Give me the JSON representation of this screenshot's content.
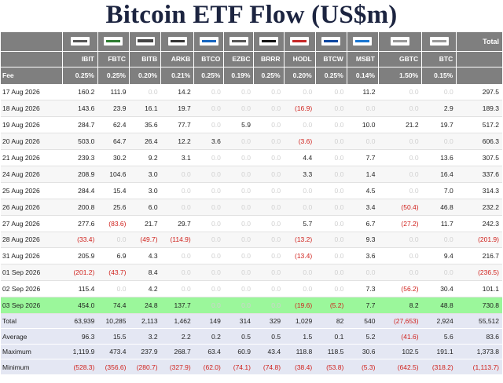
{
  "title": "Bitcoin ETF Flow (US$m)",
  "header": {
    "total_label": "Total",
    "fee_label": "Fee",
    "columns": [
      {
        "ticker": "IBIT",
        "fee": "0.25%",
        "logo": "blackrock-logo-icon"
      },
      {
        "ticker": "FBTC",
        "fee": "0.25%",
        "logo": "fidelity-logo-icon"
      },
      {
        "ticker": "BITB",
        "fee": "0.20%",
        "logo": "bitwise-logo-icon"
      },
      {
        "ticker": "ARKB",
        "fee": "0.21%",
        "logo": "ark-logo-icon"
      },
      {
        "ticker": "BTCO",
        "fee": "0.25%",
        "logo": "invesco-logo-icon"
      },
      {
        "ticker": "EZBC",
        "fee": "0.19%",
        "logo": "franklin-logo-icon"
      },
      {
        "ticker": "BRRR",
        "fee": "0.25%",
        "logo": "valkyrie-logo-icon"
      },
      {
        "ticker": "HODL",
        "fee": "0.20%",
        "logo": "vaneck-logo-icon"
      },
      {
        "ticker": "BTCW",
        "fee": "0.25%",
        "logo": "wisdomtree-logo-icon"
      },
      {
        "ticker": "MSBT",
        "fee": "0.14%",
        "logo": "morgan-stanley-logo-icon"
      },
      {
        "ticker": "GBTC",
        "fee": "1.50%",
        "logo": "grayscale-logo-icon"
      },
      {
        "ticker": "BTC",
        "fee": "0.15%",
        "logo": "grayscale-mini-logo-icon"
      }
    ]
  },
  "rows": [
    {
      "date": "17 Aug 2026",
      "values": [
        "160.2",
        "111.9",
        "0.0",
        "14.2",
        "0.0",
        "0.0",
        "0.0",
        "0.0",
        "0.0",
        "11.2",
        "0.0",
        "0.0"
      ],
      "total": "297.5"
    },
    {
      "date": "18 Aug 2026",
      "values": [
        "143.6",
        "23.9",
        "16.1",
        "19.7",
        "0.0",
        "0.0",
        "0.0",
        "(16.9)",
        "0.0",
        "0.0",
        "0.0",
        "2.9"
      ],
      "total": "189.3"
    },
    {
      "date": "19 Aug 2026",
      "values": [
        "284.7",
        "62.4",
        "35.6",
        "77.7",
        "0.0",
        "5.9",
        "0.0",
        "0.0",
        "0.0",
        "10.0",
        "21.2",
        "19.7"
      ],
      "total": "517.2"
    },
    {
      "date": "20 Aug 2026",
      "values": [
        "503.0",
        "64.7",
        "26.4",
        "12.2",
        "3.6",
        "0.0",
        "0.0",
        "(3.6)",
        "0.0",
        "0.0",
        "0.0",
        "0.0"
      ],
      "total": "606.3"
    },
    {
      "date": "21 Aug 2026",
      "values": [
        "239.3",
        "30.2",
        "9.2",
        "3.1",
        "0.0",
        "0.0",
        "0.0",
        "4.4",
        "0.0",
        "7.7",
        "0.0",
        "13.6"
      ],
      "total": "307.5"
    },
    {
      "date": "24 Aug 2026",
      "values": [
        "208.9",
        "104.6",
        "3.0",
        "0.0",
        "0.0",
        "0.0",
        "0.0",
        "3.3",
        "0.0",
        "1.4",
        "0.0",
        "16.4"
      ],
      "total": "337.6"
    },
    {
      "date": "25 Aug 2026",
      "values": [
        "284.4",
        "15.4",
        "3.0",
        "0.0",
        "0.0",
        "0.0",
        "0.0",
        "0.0",
        "0.0",
        "4.5",
        "0.0",
        "7.0"
      ],
      "total": "314.3"
    },
    {
      "date": "26 Aug 2026",
      "values": [
        "200.8",
        "25.6",
        "6.0",
        "0.0",
        "0.0",
        "0.0",
        "0.0",
        "0.0",
        "0.0",
        "3.4",
        "(50.4)",
        "46.8"
      ],
      "total": "232.2"
    },
    {
      "date": "27 Aug 2026",
      "values": [
        "277.6",
        "(83.6)",
        "21.7",
        "29.7",
        "0.0",
        "0.0",
        "0.0",
        "5.7",
        "0.0",
        "6.7",
        "(27.2)",
        "11.7"
      ],
      "total": "242.3"
    },
    {
      "date": "28 Aug 2026",
      "values": [
        "(33.4)",
        "0.0",
        "(49.7)",
        "(114.9)",
        "0.0",
        "0.0",
        "0.0",
        "(13.2)",
        "0.0",
        "9.3",
        "0.0",
        "0.0"
      ],
      "total": "(201.9)"
    },
    {
      "date": "31 Aug 2026",
      "values": [
        "205.9",
        "6.9",
        "4.3",
        "0.0",
        "0.0",
        "0.0",
        "0.0",
        "(13.4)",
        "0.0",
        "3.6",
        "0.0",
        "9.4"
      ],
      "total": "216.7"
    },
    {
      "date": "01 Sep 2026",
      "values": [
        "(201.2)",
        "(43.7)",
        "8.4",
        "0.0",
        "0.0",
        "0.0",
        "0.0",
        "0.0",
        "0.0",
        "0.0",
        "0.0",
        "0.0"
      ],
      "total": "(236.5)"
    },
    {
      "date": "02 Sep 2026",
      "values": [
        "115.4",
        "0.0",
        "4.2",
        "0.0",
        "0.0",
        "0.0",
        "0.0",
        "0.0",
        "0.0",
        "7.3",
        "(56.2)",
        "30.4"
      ],
      "total": "101.1"
    },
    {
      "date": "03 Sep 2026",
      "values": [
        "454.0",
        "74.4",
        "24.8",
        "137.7",
        "0.0",
        "0.0",
        "0.0",
        "(19.6)",
        "(5.2)",
        "7.7",
        "8.2",
        "48.8"
      ],
      "total": "730.8",
      "highlight": true
    }
  ],
  "footer": [
    {
      "label": "Total",
      "values": [
        "63,939",
        "10,285",
        "2,113",
        "1,462",
        "149",
        "314",
        "329",
        "1,029",
        "82",
        "540",
        "(27,653)",
        "2,924"
      ],
      "total": "55,512"
    },
    {
      "label": "Average",
      "values": [
        "96.3",
        "15.5",
        "3.2",
        "2.2",
        "0.2",
        "0.5",
        "0.5",
        "1.5",
        "0.1",
        "5.2",
        "(41.6)",
        "5.6"
      ],
      "total": "83.6"
    },
    {
      "label": "Maximum",
      "values": [
        "1,119.9",
        "473.4",
        "237.9",
        "268.7",
        "63.4",
        "60.9",
        "43.4",
        "118.8",
        "118.5",
        "30.6",
        "102.5",
        "191.1"
      ],
      "total": "1,373.8"
    },
    {
      "label": "Minimum",
      "values": [
        "(528.3)",
        "(356.6)",
        "(280.7)",
        "(327.9)",
        "(62.0)",
        "(74.1)",
        "(74.8)",
        "(38.4)",
        "(53.8)",
        "(5.3)",
        "(642.5)",
        "(318.2)"
      ],
      "total": "(1,113.7)"
    }
  ],
  "colors": {
    "header_bg": "#7f7f7f",
    "negative": "#d0211c",
    "zero": "#d0d0d0",
    "highlight_row": "#9bf79b",
    "footer_bg": "#e4e7f3",
    "title": "#1c2440"
  }
}
